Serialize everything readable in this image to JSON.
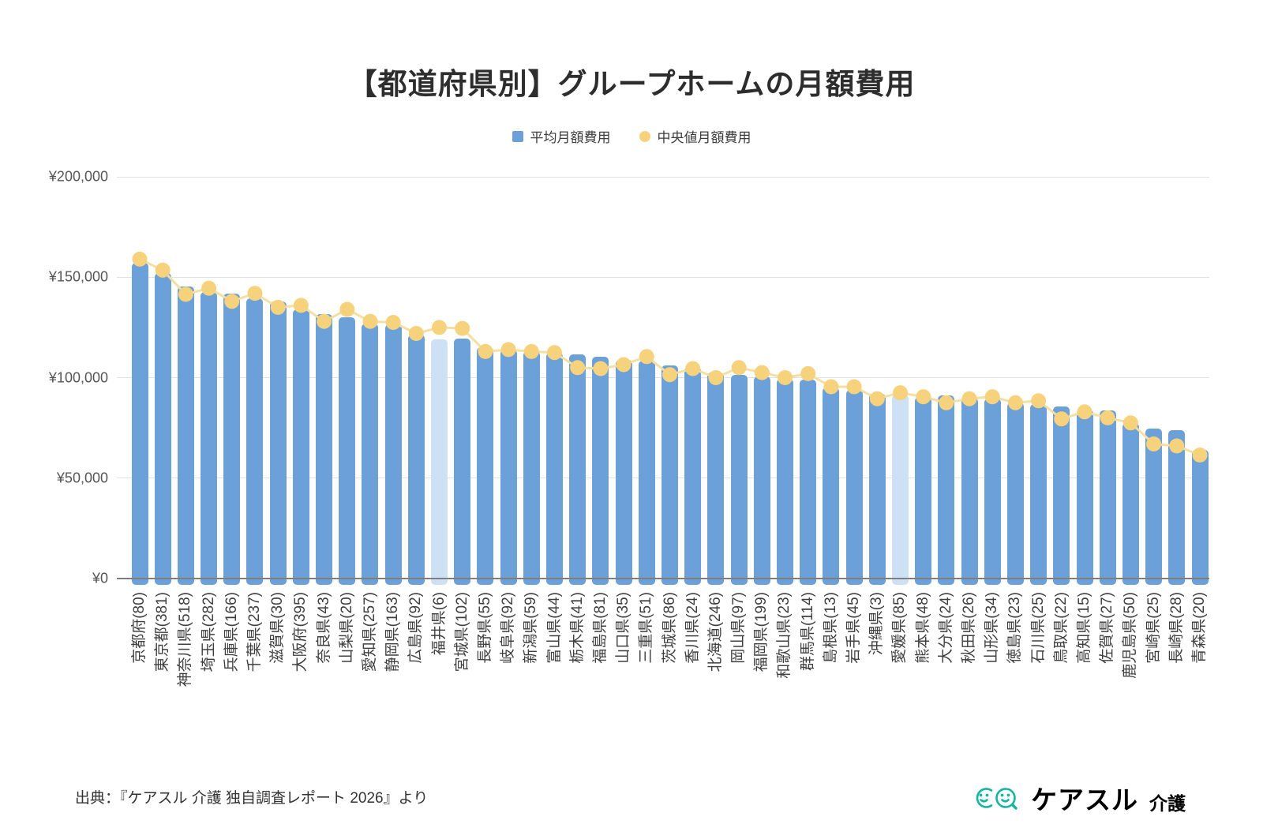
{
  "title": "【都道府県別】グループホームの月額費用",
  "legend": {
    "avg": "平均月額費用",
    "median": "中央値月額費用"
  },
  "y_axis": {
    "ticks": [
      "¥0",
      "¥50,000",
      "¥100,000",
      "¥150,000",
      "¥200,000"
    ]
  },
  "chart_data": {
    "type": "bar+line",
    "title": "【都道府県別】グループホームの月額費用",
    "legend_position": "top",
    "grid": true,
    "ylim": [
      0,
      200000
    ],
    "y_tick_step": 50000,
    "categories": [
      "京都府(80)",
      "東京都(381)",
      "神奈川県(518)",
      "埼玉県(282)",
      "兵庫県(166)",
      "千葉県(237)",
      "滋賀県(30)",
      "大阪府(395)",
      "奈良県(43)",
      "山梨県(20)",
      "愛知県(257)",
      "静岡県(163)",
      "広島県(92)",
      "福井県(6)",
      "宮城県(102)",
      "長野県(55)",
      "岐阜県(92)",
      "新潟県(59)",
      "富山県(44)",
      "栃木県(41)",
      "福島県(81)",
      "山口県(35)",
      "三重県(51)",
      "茨城県(86)",
      "香川県(24)",
      "北海道(246)",
      "岡山県(97)",
      "福岡県(199)",
      "和歌山県(23)",
      "群馬県(114)",
      "島根県(13)",
      "岩手県(45)",
      "沖縄県(3)",
      "愛媛県(85)",
      "熊本県(48)",
      "大分県(24)",
      "秋田県(26)",
      "山形県(34)",
      "徳島県(23)",
      "石川県(25)",
      "鳥取県(22)",
      "高知県(15)",
      "佐賀県(27)",
      "鹿児島県(50)",
      "宮崎県(25)",
      "長崎県(28)",
      "青森県(20)"
    ],
    "series": [
      {
        "name": "平均月額費用",
        "type": "bar",
        "values": [
          157000,
          152000,
          145500,
          142500,
          142000,
          139500,
          138000,
          134000,
          131500,
          130000,
          127000,
          126500,
          121500,
          119000,
          119500,
          115000,
          114000,
          113000,
          112500,
          111500,
          110500,
          109000,
          108500,
          106000,
          105500,
          102500,
          101500,
          100500,
          99500,
          99000,
          95000,
          94000,
          92000,
          91500,
          90500,
          91000,
          90000,
          89500,
          87500,
          87000,
          85500,
          84000,
          83500,
          77500,
          74500,
          74000,
          64000
        ]
      },
      {
        "name": "中央値月額費用",
        "type": "line",
        "values": [
          159000,
          153500,
          141500,
          144500,
          138000,
          142000,
          135000,
          136000,
          128000,
          134000,
          128000,
          127500,
          122000,
          125000,
          124500,
          113000,
          114000,
          113000,
          112500,
          105000,
          104500,
          106500,
          110500,
          101500,
          104500,
          100000,
          105000,
          102500,
          100000,
          102000,
          95500,
          95500,
          89500,
          92500,
          90500,
          87500,
          89500,
          90500,
          87500,
          88500,
          79500,
          83000,
          80000,
          77500,
          67000,
          66000,
          61500
        ]
      }
    ],
    "highlight_indices": [
      13,
      33
    ]
  },
  "colors": {
    "bar": "#6BA0D8",
    "bar_highlight": "#CDE0F4",
    "line": "#F4DFA2",
    "dot": "#F6D27D",
    "brand_teal": "#13B5A0"
  },
  "source": "出典：『ケアスル 介護 独自調査レポート 2026』より",
  "logo": {
    "brand": "ケアスル",
    "suffix": "介護"
  }
}
